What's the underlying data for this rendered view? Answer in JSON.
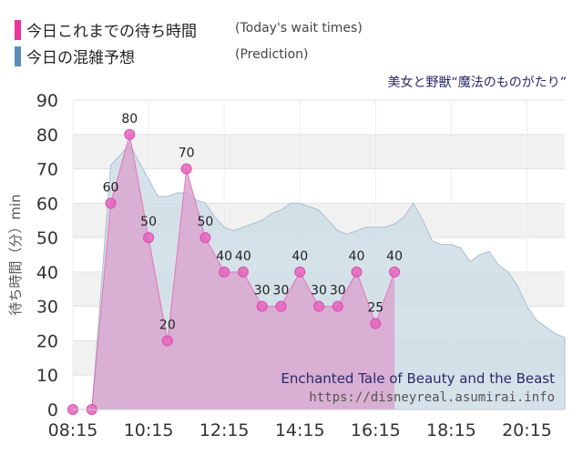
{
  "legend": {
    "today_label": "今日これまでの待ち時間",
    "today_en": "(Today's wait times)",
    "predict_label": "今日の混雑予想",
    "predict_en": "(Prediction)"
  },
  "attraction_jp": "美女と野獣“魔法のものがたり”",
  "watermark": {
    "title": "Enchanted Tale of Beauty and the Beast",
    "url": "https://disneyreal.asumirai.info"
  },
  "colors": {
    "today": "#e8369b",
    "today_fill": "#d9a6cf",
    "predict": "#5b8db8",
    "predict_fill": "#cfdde6",
    "grid_band": "#f1f1f1"
  },
  "chart_data": {
    "type": "area",
    "ylabel": "待ち時間（分）min",
    "ylim": [
      0,
      90
    ],
    "yticks": [
      0,
      10,
      20,
      30,
      40,
      50,
      60,
      70,
      80,
      90
    ],
    "xlim": [
      "08:15",
      "21:15"
    ],
    "xticks": [
      "08:15",
      "10:15",
      "12:15",
      "14:15",
      "16:15",
      "18:15",
      "20:15"
    ],
    "series": [
      {
        "key": "today",
        "name": "今日これまでの待ち時間",
        "x": [
          "08:15",
          "08:45",
          "09:15",
          "09:45",
          "10:15",
          "10:45",
          "11:15",
          "11:45",
          "12:15",
          "12:45",
          "13:15",
          "13:45",
          "14:15",
          "14:45",
          "15:15",
          "15:45",
          "16:15",
          "16:45"
        ],
        "y": [
          0,
          0,
          60,
          80,
          50,
          20,
          70,
          50,
          40,
          40,
          30,
          30,
          40,
          30,
          30,
          40,
          25,
          40
        ]
      },
      {
        "key": "predict",
        "name": "今日の混雑予想",
        "x": [
          "08:15",
          "08:45",
          "09:15",
          "09:30",
          "09:45",
          "10:00",
          "10:15",
          "10:30",
          "10:45",
          "11:00",
          "11:15",
          "11:30",
          "11:45",
          "12:00",
          "12:15",
          "12:30",
          "12:45",
          "13:00",
          "13:15",
          "13:30",
          "13:45",
          "14:00",
          "14:15",
          "14:30",
          "14:45",
          "15:00",
          "15:15",
          "15:30",
          "15:45",
          "16:00",
          "16:15",
          "16:30",
          "16:45",
          "17:00",
          "17:15",
          "17:30",
          "17:45",
          "18:00",
          "18:15",
          "18:30",
          "18:45",
          "19:00",
          "19:15",
          "19:30",
          "19:45",
          "20:00",
          "20:15",
          "20:30",
          "20:45",
          "21:00",
          "21:15"
        ],
        "y": [
          0,
          0,
          71,
          74,
          77,
          72,
          67,
          62,
          62,
          63,
          63,
          61,
          60,
          56,
          53,
          52,
          53,
          54,
          55,
          57,
          58,
          60,
          60,
          59,
          58,
          55,
          52,
          51,
          52,
          53,
          53,
          53,
          54,
          56,
          60,
          55,
          49,
          48,
          48,
          47,
          43,
          45,
          46,
          42,
          40,
          36,
          30,
          26,
          24,
          22,
          21
        ]
      }
    ]
  }
}
